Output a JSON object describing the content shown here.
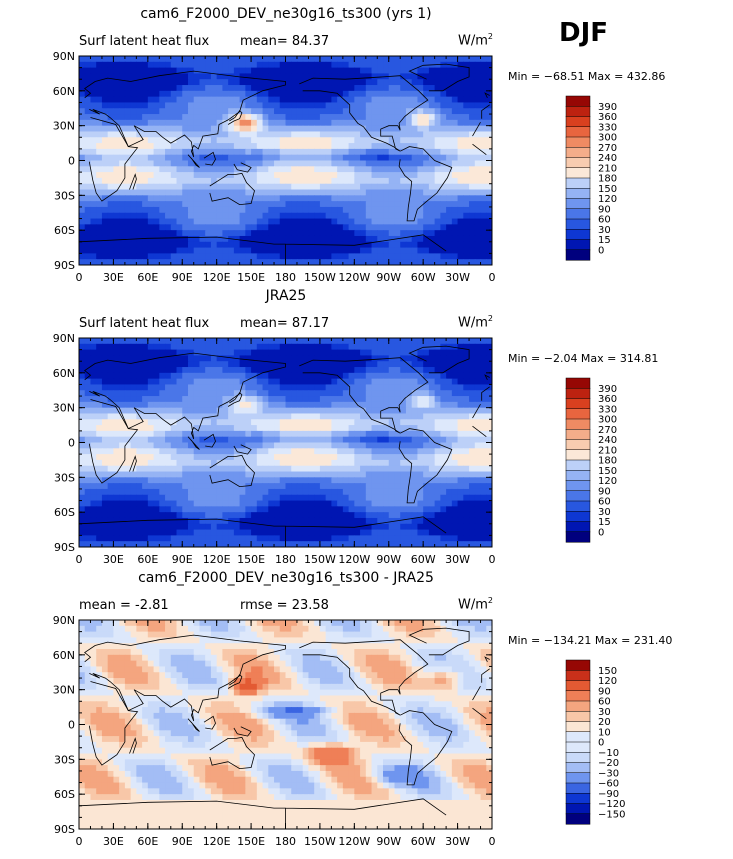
{
  "season_label": "DJF",
  "colors": {
    "abs_palette": [
      "#00007e",
      "#0016b2",
      "#0e37d3",
      "#2857e0",
      "#4a76e8",
      "#6f95ef",
      "#95b3f4",
      "#bcd0f8",
      "#dde8fb",
      "#fbe8d8",
      "#f8ccb0",
      "#f4ad8a",
      "#ef8b63",
      "#e8653f",
      "#d9401f",
      "#bd2210",
      "#960704"
    ],
    "diff_palette": [
      "#00007e",
      "#0016b2",
      "#0e37d3",
      "#3a65e2",
      "#6f95ef",
      "#a3bdf5",
      "#c9daf9",
      "#dde8fb",
      "#fbe6d4",
      "#f8c7a8",
      "#f4a57f",
      "#ef7f57",
      "#e35a33",
      "#c9301a",
      "#960704"
    ],
    "land": "#dde8fb",
    "coast": "#000000"
  },
  "panels": [
    {
      "title": "cam6_F2000_DEV_ne30g16_ts300 (yrs 1)",
      "left_text": "Surf latent heat flux",
      "stat_text": "mean=  84.37",
      "units_base": "W/m",
      "units_exp": "2",
      "minmax": "Min = −68.51 Max = 432.86",
      "colorbar_labels": [
        "390",
        "360",
        "330",
        "300",
        "270",
        "240",
        "210",
        "180",
        "150",
        "120",
        "90",
        "60",
        "30",
        "15",
        "0"
      ]
    },
    {
      "title": "JRA25",
      "left_text": "Surf latent heat flux",
      "stat_text": "mean=  87.17",
      "units_base": "W/m",
      "units_exp": "2",
      "minmax": "Min =  −2.04 Max = 314.81",
      "colorbar_labels": [
        "390",
        "360",
        "330",
        "300",
        "270",
        "240",
        "210",
        "180",
        "150",
        "120",
        "90",
        "60",
        "30",
        "15",
        "0"
      ]
    },
    {
      "title": "cam6_F2000_DEV_ne30g16_ts300 - JRA25",
      "left_text": "mean =  -2.81",
      "stat_text": "rmse =  23.58",
      "units_base": "W/m",
      "units_exp": "2",
      "minmax": "Min = −134.21 Max = 231.40",
      "colorbar_labels": [
        "150",
        "120",
        "90",
        "60",
        "30",
        "20",
        "10",
        "0",
        "−10",
        "−20",
        "−30",
        "−60",
        "−90",
        "−120",
        "−150"
      ]
    }
  ],
  "axes": {
    "lat_ticks": [
      "90N",
      "60N",
      "30N",
      "0",
      "30S",
      "60S",
      "90S"
    ],
    "lon_ticks": [
      "0",
      "30E",
      "60E",
      "90E",
      "120E",
      "150E",
      "180",
      "150W",
      "120W",
      "90W",
      "60W",
      "30W",
      "0"
    ]
  },
  "chart_data": [
    {
      "type": "heatmap",
      "title": "cam6_F2000_DEV_ne30g16_ts300 (yrs 1)",
      "variable": "Surf latent heat flux",
      "units": "W/m2",
      "mean": 84.37,
      "min": -68.51,
      "max": 432.86,
      "levels": [
        0,
        15,
        30,
        60,
        90,
        120,
        150,
        180,
        210,
        240,
        270,
        300,
        330,
        360,
        390
      ],
      "x_range": [
        0,
        360
      ],
      "y_range": [
        -90,
        90
      ]
    },
    {
      "type": "heatmap",
      "title": "JRA25",
      "variable": "Surf latent heat flux",
      "units": "W/m2",
      "mean": 87.17,
      "min": -2.04,
      "max": 314.81,
      "levels": [
        0,
        15,
        30,
        60,
        90,
        120,
        150,
        180,
        210,
        240,
        270,
        300,
        330,
        360,
        390
      ],
      "x_range": [
        0,
        360
      ],
      "y_range": [
        -90,
        90
      ]
    },
    {
      "type": "heatmap",
      "title": "cam6_F2000_DEV_ne30g16_ts300 - JRA25",
      "units": "W/m2",
      "mean": -2.81,
      "rmse": 23.58,
      "min": -134.21,
      "max": 231.4,
      "levels": [
        -150,
        -120,
        -90,
        -60,
        -30,
        -20,
        -10,
        0,
        10,
        20,
        30,
        60,
        90,
        120,
        150
      ],
      "x_range": [
        0,
        360
      ],
      "y_range": [
        -90,
        90
      ]
    }
  ]
}
